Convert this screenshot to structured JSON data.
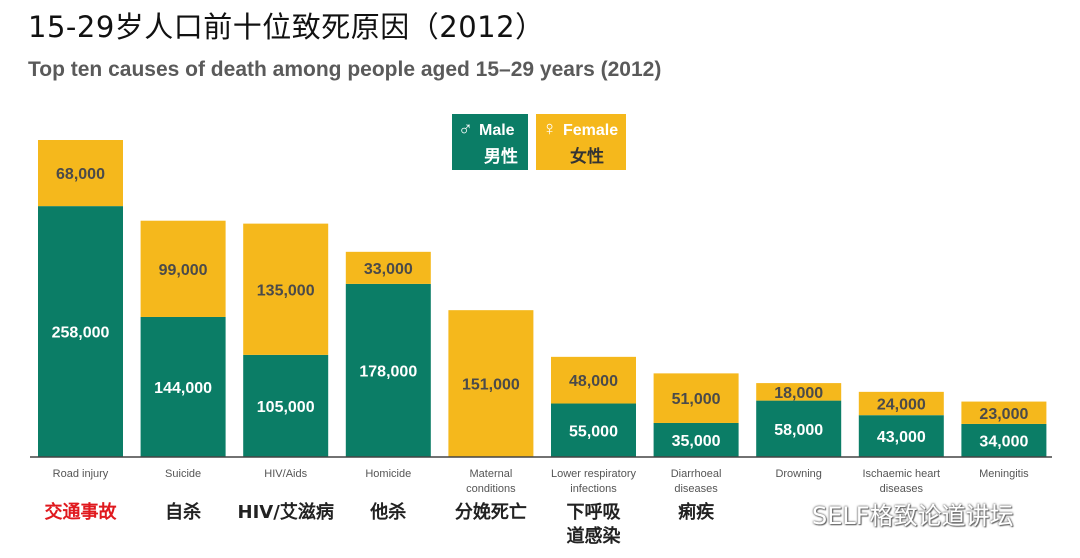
{
  "title_zh": "15-29岁人口前十位致死原因（2012）",
  "title_en": "Top ten causes of death among people aged 15–29 years (2012)",
  "legend": {
    "male_symbol": "♂",
    "male_en": "Male",
    "male_zh": "男性",
    "female_symbol": "♀",
    "female_en": "Female",
    "female_zh": "女性"
  },
  "colors": {
    "male": "#0b7d66",
    "female": "#f5b81c",
    "highlight": "#e0191e",
    "value_label": "#ffffff",
    "value_label_female": "#4a4a4a"
  },
  "watermark": "SELF格致论道讲坛",
  "chart_data": {
    "type": "bar",
    "stacked": true,
    "title": "Top ten causes of death among people aged 15–29 years (2012)",
    "categories": [
      {
        "en": [
          "Road injury"
        ],
        "zh": [
          "交通事故"
        ],
        "highlight": true
      },
      {
        "en": [
          "Suicide"
        ],
        "zh": [
          "自杀"
        ],
        "highlight": false
      },
      {
        "en": [
          "HIV/Aids"
        ],
        "zh": [
          "HIV/艾滋病"
        ],
        "highlight": false
      },
      {
        "en": [
          "Homicide"
        ],
        "zh": [
          "他杀"
        ],
        "highlight": false
      },
      {
        "en": [
          "Maternal",
          "conditions"
        ],
        "zh": [
          "分娩死亡"
        ],
        "highlight": false
      },
      {
        "en": [
          "Lower respiratory",
          "infections"
        ],
        "zh": [
          "下呼吸",
          "道感染"
        ],
        "highlight": false
      },
      {
        "en": [
          "Diarrhoeal",
          "diseases"
        ],
        "zh": [
          "痢疾"
        ],
        "highlight": false
      },
      {
        "en": [
          "Drowning"
        ],
        "zh": [
          ""
        ],
        "highlight": false
      },
      {
        "en": [
          "Ischaemic heart",
          "diseases"
        ],
        "zh": [
          ""
        ],
        "highlight": false
      },
      {
        "en": [
          "Meningitis"
        ],
        "zh": [
          ""
        ],
        "highlight": false
      }
    ],
    "series": [
      {
        "name": "Male",
        "values": [
          258000,
          144000,
          105000,
          178000,
          0,
          55000,
          35000,
          58000,
          43000,
          34000
        ],
        "labels": [
          "258,000",
          "144,000",
          "105,000",
          "178,000",
          "",
          "55,000",
          "35,000",
          "58,000",
          "43,000",
          "34,000"
        ]
      },
      {
        "name": "Female",
        "values": [
          68000,
          99000,
          135000,
          33000,
          151000,
          48000,
          51000,
          18000,
          24000,
          23000
        ],
        "labels": [
          "68,000",
          "99,000",
          "135,000",
          "33,000",
          "151,000",
          "48,000",
          "51,000",
          "18,000",
          "24,000",
          "23,000"
        ]
      }
    ],
    "ylim": [
      0,
      326000
    ],
    "xlabel": "",
    "ylabel": "",
    "grid": false
  }
}
